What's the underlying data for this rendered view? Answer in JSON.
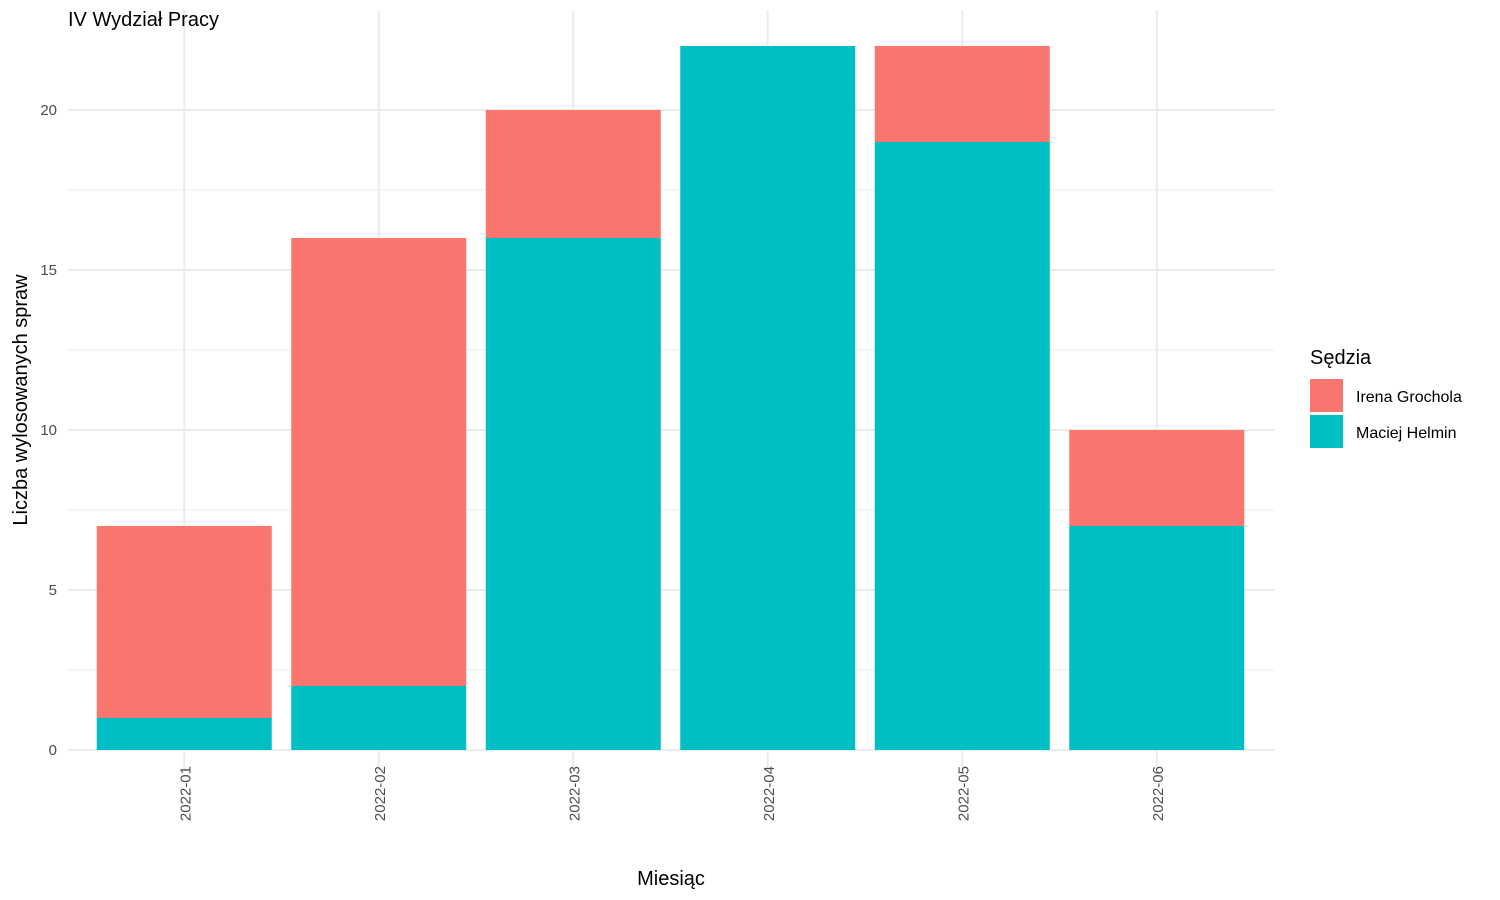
{
  "chart_data": {
    "type": "bar",
    "stacked": true,
    "title": "IV Wydział Pracy",
    "xlabel": "Miesiąc",
    "ylabel": "Liczba wylosowanych spraw",
    "categories": [
      "2022-01",
      "2022-02",
      "2022-03",
      "2022-04",
      "2022-05",
      "2022-06"
    ],
    "series": [
      {
        "name": "Maciej Helmin",
        "color": "#00BFC4",
        "values": [
          1,
          2,
          16,
          22,
          19,
          7
        ]
      },
      {
        "name": "Irena Grochola",
        "color": "#F8766D",
        "values": [
          6,
          14,
          4,
          0,
          3,
          3
        ]
      }
    ],
    "ylim": [
      0,
      22
    ],
    "yticks": [
      0,
      5,
      10,
      15,
      20
    ],
    "grid": true,
    "legend": {
      "title": "Sędzia",
      "placement": "right",
      "entries": [
        {
          "label": "Irena Grochola",
          "color": "#F8766D"
        },
        {
          "label": "Maciej Helmin",
          "color": "#00BFC4"
        }
      ]
    }
  }
}
